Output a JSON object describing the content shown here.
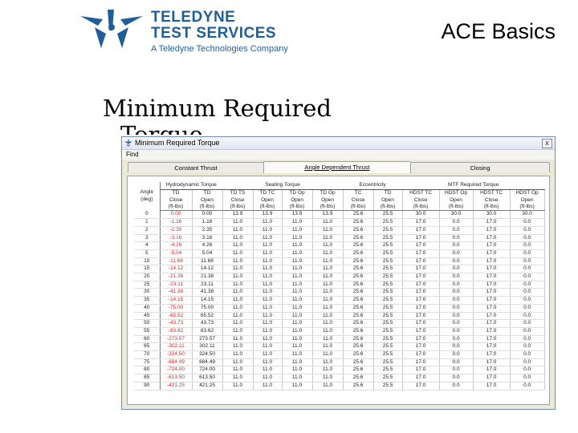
{
  "slide": {
    "logo_line1": "TELEDYNE",
    "logo_line2": "TEST SERVICES",
    "logo_tagline": "A Teledyne Technologies Company",
    "title": "ACE Basics",
    "heading": "Minimum Required",
    "heading_clipped": "Torque"
  },
  "window": {
    "title": "Minimum Required Torque",
    "close_label": "x",
    "menu_label": "Find",
    "tabs": [
      "Constant Thrust",
      "Angle Dependent Thrust",
      "Closing"
    ],
    "active_tab": "Angle Dependent Thrust"
  },
  "table": {
    "angle_header": [
      "Angle",
      "(deg)"
    ],
    "groups": [
      "Hydrodynamic Torque",
      "Seating Torque",
      "Eccentricity",
      "MTF Required Torque"
    ],
    "col_top": [
      "TD",
      "TD",
      "TD TS",
      "TD TC",
      "TD Op",
      "TD Op",
      "TC",
      "TD",
      "HDST TC",
      "HDST Op",
      "HDST TC",
      "HDST Op"
    ],
    "col_sub": [
      [
        "Close",
        "(ft-lbs)"
      ],
      [
        "Open",
        "(ft-lbs)"
      ],
      [
        "Close",
        "(ft-lbs)"
      ],
      [
        "Open",
        "(ft-lbs)"
      ],
      [
        "Open",
        "(ft-lbs)"
      ],
      [
        "Open",
        "(ft-lbs)"
      ],
      [
        "Close",
        "(ft-lbs)"
      ],
      [
        "Open",
        "(ft-lbs)"
      ],
      [
        "Close",
        "(ft-lbs)"
      ],
      [
        "Open",
        "(ft-lbs)"
      ],
      [
        "Close",
        "(ft-lbs)"
      ],
      [
        "Open",
        "(ft-lbs)"
      ]
    ],
    "red_column": 0,
    "rows": [
      [
        "0",
        "0.00",
        "0.00",
        "13.9",
        "13.9",
        "13.9",
        "13.9",
        "25.6",
        "25.5",
        "30.0",
        "30.0",
        "30.0",
        "30.0"
      ],
      [
        "1",
        "-1.16",
        "1.16",
        "11.0",
        "11.0",
        "11.0",
        "11.0",
        "25.6",
        "25.5",
        "17.0",
        "0.0",
        "17.0",
        "0.0"
      ],
      [
        "2",
        "-2.35",
        "2.35",
        "11.0",
        "11.0",
        "11.0",
        "11.0",
        "25.6",
        "25.5",
        "17.0",
        "0.0",
        "17.0",
        "0.0"
      ],
      [
        "3",
        "-3.16",
        "3.16",
        "11.0",
        "11.0",
        "11.0",
        "11.0",
        "25.6",
        "25.5",
        "17.0",
        "0.0",
        "17.0",
        "0.0"
      ],
      [
        "4",
        "-4.26",
        "4.26",
        "11.0",
        "11.0",
        "11.0",
        "11.0",
        "25.6",
        "25.5",
        "17.0",
        "0.0",
        "17.0",
        "0.0"
      ],
      [
        "5",
        "-5.04",
        "5.04",
        "11.0",
        "11.0",
        "11.0",
        "11.0",
        "25.6",
        "25.5",
        "17.0",
        "0.0",
        "17.0",
        "0.0"
      ],
      [
        "10",
        "-11.68",
        "11.68",
        "11.0",
        "11.0",
        "11.0",
        "11.0",
        "25.6",
        "25.5",
        "17.0",
        "0.0",
        "17.0",
        "0.0"
      ],
      [
        "15",
        "-14.12",
        "14.12",
        "11.0",
        "11.0",
        "11.0",
        "11.0",
        "25.6",
        "25.5",
        "17.0",
        "0.0",
        "17.0",
        "0.0"
      ],
      [
        "20",
        "-21.38",
        "21.38",
        "11.0",
        "11.0",
        "11.0",
        "11.0",
        "25.6",
        "25.5",
        "17.0",
        "0.0",
        "17.0",
        "0.0"
      ],
      [
        "25",
        "-23.11",
        "23.11",
        "11.0",
        "11.0",
        "11.0",
        "11.0",
        "25.6",
        "25.5",
        "17.0",
        "0.0",
        "17.0",
        "0.0"
      ],
      [
        "30",
        "-41.38",
        "41.38",
        "11.0",
        "11.0",
        "11.0",
        "11.0",
        "25.6",
        "25.5",
        "17.0",
        "0.0",
        "17.0",
        "0.0"
      ],
      [
        "35",
        "-14.15",
        "14.15",
        "11.0",
        "11.0",
        "11.0",
        "11.0",
        "25.6",
        "25.5",
        "17.0",
        "0.0",
        "17.0",
        "0.0"
      ],
      [
        "40",
        "-75.00",
        "75.00",
        "11.0",
        "11.0",
        "11.0",
        "11.0",
        "25.6",
        "25.5",
        "17.0",
        "0.0",
        "17.0",
        "0.0"
      ],
      [
        "45",
        "-65.52",
        "65.52",
        "11.0",
        "11.0",
        "11.0",
        "11.0",
        "25.6",
        "25.5",
        "17.0",
        "0.0",
        "17.0",
        "0.0"
      ],
      [
        "50",
        "-43.73",
        "43.73",
        "11.0",
        "11.0",
        "11.0",
        "11.0",
        "25.6",
        "25.5",
        "17.0",
        "0.0",
        "17.0",
        "0.0"
      ],
      [
        "55",
        "-83.62",
        "83.62",
        "11.0",
        "11.0",
        "11.0",
        "11.0",
        "25.6",
        "25.5",
        "17.0",
        "0.0",
        "17.0",
        "0.0"
      ],
      [
        "60",
        "-273.57",
        "273.57",
        "11.0",
        "11.0",
        "11.0",
        "11.0",
        "25.6",
        "25.5",
        "17.0",
        "0.0",
        "17.0",
        "0.0"
      ],
      [
        "65",
        "-302.11",
        "302.11",
        "11.0",
        "11.0",
        "11.0",
        "11.0",
        "25.6",
        "25.5",
        "17.0",
        "0.0",
        "17.0",
        "0.0"
      ],
      [
        "70",
        "-324.50",
        "324.50",
        "11.0",
        "11.0",
        "11.0",
        "11.0",
        "25.6",
        "25.5",
        "17.0",
        "0.0",
        "17.0",
        "0.0"
      ],
      [
        "75",
        "-684.49",
        "684.49",
        "11.0",
        "11.0",
        "11.0",
        "11.0",
        "25.6",
        "25.5",
        "17.0",
        "0.0",
        "17.0",
        "0.0"
      ],
      [
        "80",
        "-724.00",
        "724.00",
        "11.0",
        "11.0",
        "11.0",
        "11.0",
        "25.6",
        "25.5",
        "17.0",
        "0.0",
        "17.0",
        "0.0"
      ],
      [
        "85",
        "-613.50",
        "613.50",
        "11.0",
        "11.0",
        "11.0",
        "11.0",
        "25.6",
        "25.5",
        "17.0",
        "0.0",
        "17.0",
        "0.0"
      ],
      [
        "90",
        "-421.25",
        "421.25",
        "11.0",
        "11.0",
        "11.0",
        "11.0",
        "25.6",
        "25.5",
        "17.0",
        "0.0",
        "17.0",
        "0.0"
      ]
    ]
  },
  "colors": {
    "brand_blue": "#1f5e9b",
    "negative_red": "#d42a2a",
    "window_frame": "#ece9d8"
  }
}
